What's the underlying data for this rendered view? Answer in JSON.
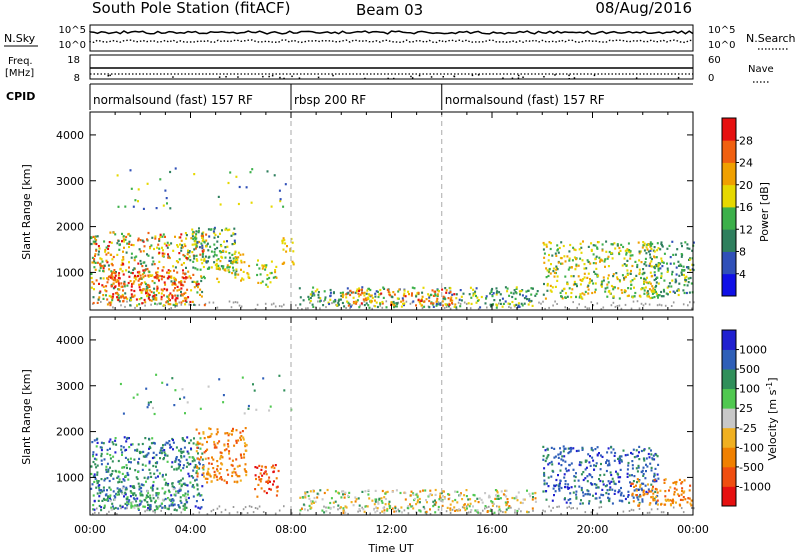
{
  "header": {
    "station": "South Pole Station (fitACF)",
    "beam": "Beam 03",
    "date": "08/Aug/2016"
  },
  "noise_panel": {
    "left_label": "N.Sky",
    "right_label": "N.Search",
    "left_ticks": [
      "10^5",
      "10^0"
    ],
    "right_ticks": [
      "10^5",
      "10^0"
    ]
  },
  "freq_panel": {
    "left_label_1": "Freq.",
    "left_label_2": "[MHz]",
    "right_label": "Nave",
    "left_ticks": [
      "18",
      "8"
    ],
    "right_ticks": [
      "60",
      "0"
    ]
  },
  "cpid_panel": {
    "label": "CPID",
    "segments": [
      {
        "label": "normalsound (fast) 157 RF",
        "start": 0,
        "end": 8
      },
      {
        "label": "rbsp 200 RF",
        "start": 8,
        "end": 14
      },
      {
        "label": "normalsound (fast) 157 RF",
        "start": 14,
        "end": 24
      }
    ]
  },
  "colors": {
    "power": [
      "#1010e6",
      "#3050b8",
      "#2f7f5e",
      "#3cb04a",
      "#e6d800",
      "#f0a000",
      "#f06010",
      "#e61010"
    ],
    "velocity": [
      "#e61010",
      "#f04e10",
      "#f08000",
      "#f0b020",
      "#c8c8c8",
      "#50c850",
      "#308f5a",
      "#2f5fb8",
      "#2020d0"
    ],
    "ground_scatter": "#9a9a9a"
  },
  "chart_data": [
    {
      "type": "heatmap",
      "name": "power",
      "ylabel": "Slant Range [km]",
      "xlim": [
        0,
        24
      ],
      "ylim": [
        180,
        4500
      ],
      "yticks": [
        1000,
        2000,
        3000,
        4000
      ],
      "colorbar": {
        "label": "Power [dB]",
        "ticks": [
          4,
          8,
          12,
          16,
          20,
          24,
          28
        ],
        "range": [
          0,
          32
        ]
      },
      "regions": [
        {
          "t0": 0.0,
          "t1": 4.6,
          "r0": 300,
          "r1": 1900,
          "v0": 8,
          "v1": 30
        },
        {
          "t0": 0.6,
          "t1": 3.8,
          "r0": 400,
          "r1": 1100,
          "v0": 22,
          "v1": 31
        },
        {
          "t0": 4.0,
          "t1": 5.8,
          "r0": 1000,
          "r1": 2000,
          "v0": 6,
          "v1": 18
        },
        {
          "t0": 5.0,
          "t1": 6.3,
          "r0": 800,
          "r1": 1500,
          "v0": 14,
          "v1": 24
        },
        {
          "t0": 6.6,
          "t1": 7.4,
          "r0": 700,
          "r1": 1300,
          "v0": 12,
          "v1": 22
        },
        {
          "t0": 7.6,
          "t1": 8.1,
          "r0": 1200,
          "r1": 1800,
          "v0": 16,
          "v1": 24
        },
        {
          "t0": 8.3,
          "t1": 17.8,
          "r0": 250,
          "r1": 700,
          "v0": 6,
          "v1": 20
        },
        {
          "t0": 10.0,
          "t1": 14.5,
          "r0": 300,
          "r1": 650,
          "v0": 18,
          "v1": 30
        },
        {
          "t0": 18.0,
          "t1": 22.6,
          "r0": 450,
          "r1": 1700,
          "v0": 10,
          "v1": 24
        },
        {
          "t0": 22.0,
          "t1": 24.0,
          "r0": 500,
          "r1": 1700,
          "v0": 6,
          "v1": 18
        }
      ]
    },
    {
      "type": "heatmap",
      "name": "velocity",
      "ylabel": "Slant Range [km]",
      "xlabel": "Time UT",
      "xlim": [
        0,
        24
      ],
      "ylim": [
        180,
        4500
      ],
      "xticks": [
        "00:00",
        "04:00",
        "08:00",
        "12:00",
        "16:00",
        "20:00",
        "00:00"
      ],
      "yticks": [
        1000,
        2000,
        3000,
        4000
      ],
      "colorbar": {
        "label": "Velocity [m s",
        "label_exp": "-1",
        "label_end": "]",
        "ticks": [
          "1000",
          "500",
          "100",
          "25",
          "-25",
          "-100",
          "-500",
          "-1000"
        ]
      },
      "regions": [
        {
          "t0": 0.0,
          "t1": 4.5,
          "r0": 300,
          "r1": 1900,
          "v0": 5,
          "v1": 8
        },
        {
          "t0": 0.3,
          "t1": 3.8,
          "r0": 300,
          "r1": 800,
          "v0": 4,
          "v1": 7
        },
        {
          "t0": 4.2,
          "t1": 6.2,
          "r0": 900,
          "r1": 2100,
          "v0": 1,
          "v1": 3
        },
        {
          "t0": 6.5,
          "t1": 7.5,
          "r0": 600,
          "r1": 1300,
          "v0": 0,
          "v1": 2
        },
        {
          "t0": 8.3,
          "t1": 17.8,
          "r0": 250,
          "r1": 750,
          "v0": 2,
          "v1": 6
        },
        {
          "t0": 18.0,
          "t1": 22.6,
          "r0": 450,
          "r1": 1700,
          "v0": 6,
          "v1": 8
        },
        {
          "t0": 21.5,
          "t1": 24.0,
          "r0": 400,
          "r1": 1000,
          "v0": 1,
          "v1": 3
        }
      ]
    }
  ]
}
